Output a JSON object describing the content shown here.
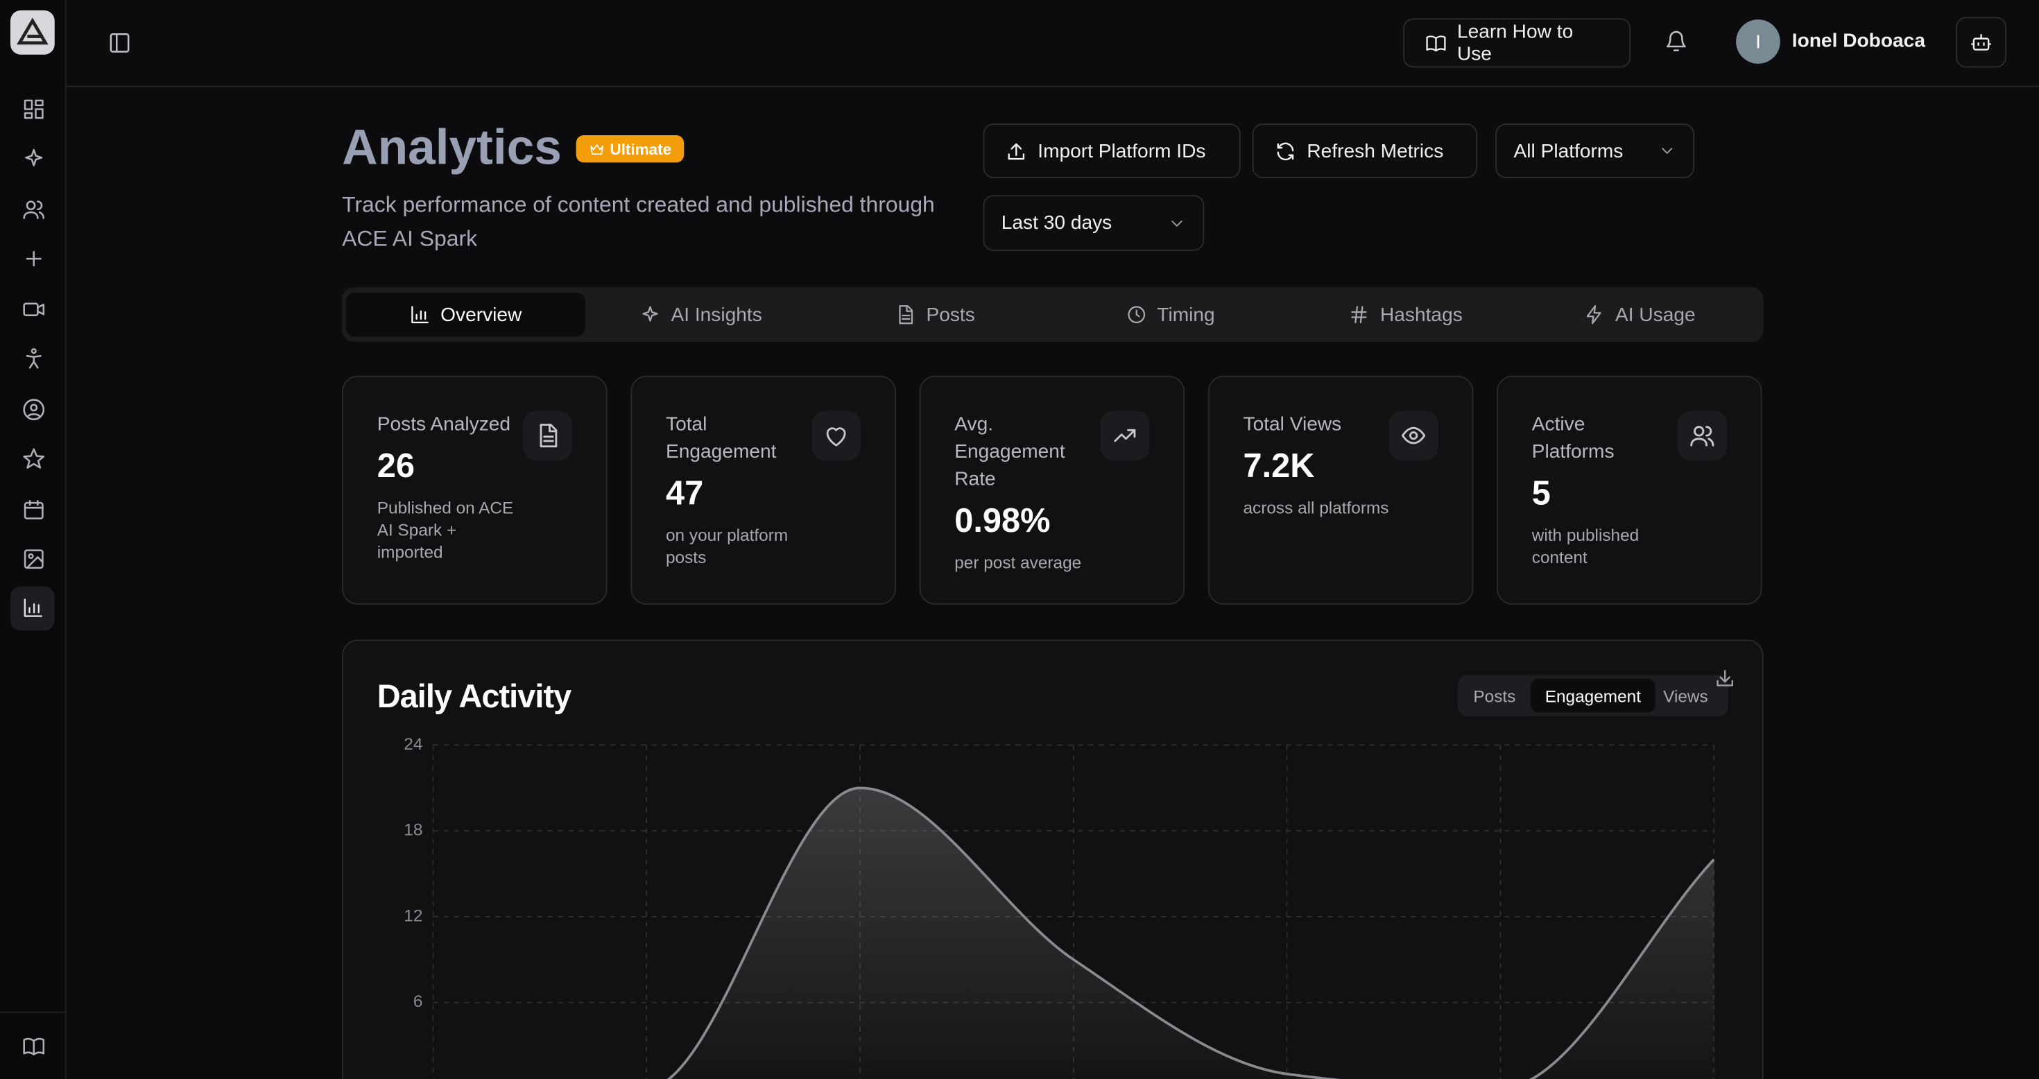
{
  "header": {
    "learn_button": "Learn How to Use",
    "user_initial": "I",
    "user_name": "Ionel Doboaca"
  },
  "page": {
    "title": "Analytics",
    "badge": "Ultimate",
    "subtitle": "Track performance of content created and published through ACE AI Spark",
    "buttons": [
      "Import Platform IDs",
      "Refresh Metrics"
    ],
    "platform_select": "All Platforms",
    "range_select": "Last 30 days"
  },
  "tabs": [
    "Overview",
    "AI Insights",
    "Posts",
    "Timing",
    "Hashtags",
    "AI Usage"
  ],
  "stats": [
    {
      "label": "Posts Analyzed",
      "value": "26",
      "note": "Published on ACE AI Spark + imported"
    },
    {
      "label": "Total Engagement",
      "value": "47",
      "note": "on your platform posts"
    },
    {
      "label": "Avg. Engagement Rate",
      "value": "0.98%",
      "note": "per post average"
    },
    {
      "label": "Total Views",
      "value": "7.2K",
      "note": "across all platforms"
    },
    {
      "label": "Active Platforms",
      "value": "5",
      "note": "with published content"
    }
  ],
  "chart_controls": [
    "Posts",
    "Engagement",
    "Views"
  ],
  "chart_data": {
    "type": "area",
    "title": "Daily Activity",
    "categories": [
      null,
      null,
      null,
      null,
      null,
      null,
      null
    ],
    "values": [
      0,
      0,
      21,
      9,
      1,
      0,
      16
    ],
    "color": "#8a8a90",
    "ylim": [
      0,
      24
    ],
    "yticks": [
      6,
      12,
      18,
      24
    ],
    "grid": true
  }
}
